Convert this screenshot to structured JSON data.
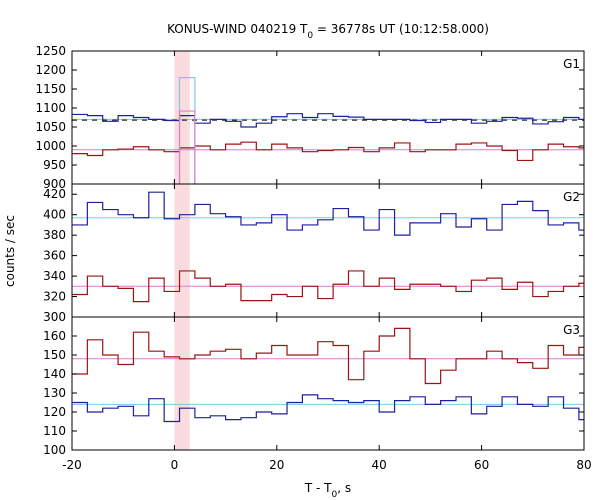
{
  "chart_data": {
    "type": "line",
    "title_main": "KONUS-WIND 040219 T",
    "title_sub": "0",
    "title_rest": " = 36778s UT (10:12:58.000)",
    "xlabel_main": "T - T",
    "xlabel_sub": "0",
    "xlabel_rest": ", s",
    "ylabel": "counts / sec",
    "xlim": [
      -20,
      80
    ],
    "xticks": [
      -20,
      0,
      20,
      40,
      60,
      80
    ],
    "xtick_labels": [
      "-20",
      "0",
      "20",
      "40",
      "60",
      "80"
    ],
    "highlight_interval": [
      0,
      3
    ],
    "colors": {
      "blue": "#1f1fa0",
      "red": "#9b1414",
      "lightblue": "#7ec8e8",
      "pink": "#e07ad0",
      "highlight": "#fadcde",
      "dash": "#000000"
    },
    "panels": [
      {
        "name": "G1",
        "ylim": [
          900,
          1250
        ],
        "yticks": [
          900,
          950,
          1000,
          1050,
          1100,
          1150,
          1200,
          1250
        ],
        "ytick_labels": [
          "900",
          "950",
          "1000",
          "1050",
          "1100",
          "1150",
          "1200",
          "1250"
        ],
        "bin_width": 3,
        "series": [
          {
            "color": "blue",
            "values": [
              1083,
              1080,
              1065,
              1080,
              1075,
              1070,
              1067,
              1080,
              1060,
              1070,
              1065,
              1050,
              1060,
              1077,
              1085,
              1075,
              1085,
              1078,
              1076,
              1070,
              1070,
              1070,
              1067,
              1062,
              1070,
              1070,
              1060,
              1065,
              1075,
              1073,
              1058,
              1064,
              1075,
              1070,
              1060,
              1073,
              1075,
              1068,
              1075,
              1067,
              1070,
              1075,
              1073,
              1073,
              1070,
              1074,
              1072
            ]
          },
          {
            "color": "red",
            "values": [
              980,
              975,
              990,
              992,
              998,
              990,
              985,
              995,
              1000,
              990,
              1005,
              1010,
              990,
              1005,
              995,
              985,
              988,
              990,
              996,
              985,
              995,
              1008,
              985,
              990,
              990,
              1005,
              1008,
              1000,
              988,
              962,
              990,
              1005,
              998,
              995,
              988,
              980,
              995,
              990,
              1008,
              1002,
              1008,
              990,
              1000,
              1000,
              988,
              1005,
              990
            ]
          },
          {
            "color": "lightblue",
            "values": [
              1180
            ]
          },
          {
            "color": "pink",
            "values": [
              1092
            ]
          }
        ],
        "series_starts": [
          -20,
          -20,
          1,
          1
        ],
        "means": [
          {
            "color": "lightblue",
            "value": 1070
          },
          {
            "color": "pink",
            "value": 990
          }
        ],
        "dashed_level": 1068
      },
      {
        "name": "G2",
        "ylim": [
          300,
          430
        ],
        "yticks": [
          300,
          320,
          340,
          360,
          380,
          400,
          420
        ],
        "ytick_labels": [
          "300",
          "320",
          "340",
          "360",
          "380",
          "400",
          "420"
        ],
        "bin_width": 3,
        "series": [
          {
            "color": "blue",
            "values": [
              390,
              412,
              405,
              400,
              397,
              422,
              396,
              400,
              410,
              401,
              398,
              390,
              392,
              400,
              385,
              390,
              395,
              406,
              398,
              385,
              405,
              380,
              392,
              392,
              401,
              388,
              396,
              385,
              410,
              413,
              404,
              390,
              392,
              385,
              412,
              403,
              400,
              390,
              393,
              400,
              413,
              412,
              385,
              400,
              397,
              410,
              395
            ]
          },
          {
            "color": "red",
            "values": [
              322,
              340,
              330,
              328,
              315,
              338,
              325,
              345,
              338,
              330,
              332,
              316,
              316,
              322,
              320,
              330,
              318,
              332,
              345,
              330,
              338,
              327,
              332,
              332,
              330,
              325,
              336,
              338,
              327,
              334,
              320,
              325,
              330,
              333,
              322,
              330,
              320,
              338,
              312,
              328,
              332,
              332,
              336,
              330,
              324,
              330,
              330
            ]
          }
        ],
        "series_starts": [
          -20,
          -20
        ],
        "means": [
          {
            "color": "lightblue",
            "value": 397
          },
          {
            "color": "pink",
            "value": 330
          }
        ]
      },
      {
        "name": "G3",
        "ylim": [
          100,
          170
        ],
        "yticks": [
          100,
          110,
          120,
          130,
          140,
          150,
          160
        ],
        "ytick_labels": [
          "100",
          "110",
          "120",
          "130",
          "140",
          "150",
          "160"
        ],
        "bin_width": 3,
        "series": [
          {
            "color": "red",
            "values": [
              140,
              158,
              150,
              145,
              162,
              152,
              149,
              148,
              150,
              152,
              153,
              148,
              151,
              155,
              150,
              150,
              157,
              155,
              137,
              152,
              160,
              164,
              148,
              135,
              142,
              148,
              148,
              152,
              148,
              146,
              143,
              155,
              150,
              154,
              150,
              162,
              150,
              155,
              146,
              138,
              148,
              152,
              154,
              148,
              158,
              155,
              145
            ]
          },
          {
            "color": "blue",
            "values": [
              125,
              120,
              122,
              123,
              118,
              127,
              115,
              122,
              117,
              118,
              116,
              117,
              120,
              119,
              125,
              129,
              127,
              126,
              125,
              126,
              120,
              126,
              128,
              124,
              126,
              128,
              119,
              123,
              128,
              124,
              123,
              128,
              122,
              116,
              127,
              124,
              121,
              117,
              125,
              120,
              125,
              124,
              127,
              122,
              124,
              122,
              120
            ]
          }
        ],
        "series_starts": [
          -20,
          -20
        ],
        "means": [
          {
            "color": "pink",
            "value": 148
          },
          {
            "color": "lightblue",
            "value": 124
          }
        ]
      }
    ]
  }
}
